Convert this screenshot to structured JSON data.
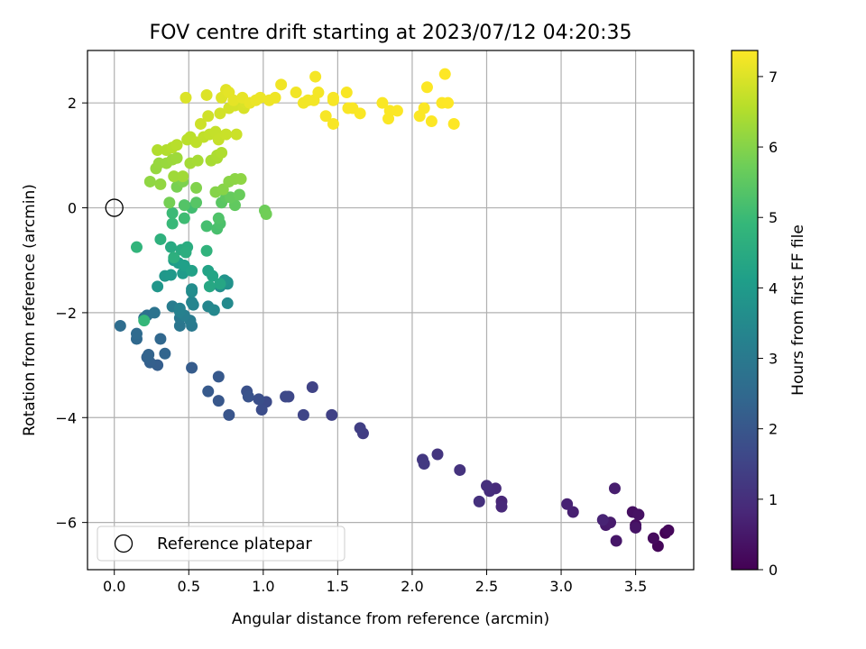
{
  "chart_data": {
    "type": "scatter",
    "title": "FOV centre drift starting at 2023/07/12 04:20:35",
    "xlabel": "Angular distance from reference (arcmin)",
    "ylabel": "Rotation from reference (arcmin)",
    "xlim": [
      -0.18,
      3.89
    ],
    "ylim": [
      -6.9,
      3.0
    ],
    "xticks": [
      0.0,
      0.5,
      1.0,
      1.5,
      2.0,
      2.5,
      3.0,
      3.5
    ],
    "xtick_labels": [
      "0.0",
      "0.5",
      "1.0",
      "1.5",
      "2.0",
      "2.5",
      "3.0",
      "3.5"
    ],
    "yticks": [
      -6,
      -4,
      -2,
      0,
      2
    ],
    "ytick_labels": [
      "−6",
      "−4",
      "−2",
      "0",
      "2"
    ],
    "grid": true,
    "colormap": "viridis",
    "colorbar": {
      "label": "Hours from first FF file",
      "range": [
        0,
        7.37
      ],
      "ticks": [
        0,
        1,
        2,
        3,
        4,
        5,
        6,
        7
      ],
      "tick_labels": [
        "0",
        "1",
        "2",
        "3",
        "4",
        "5",
        "6",
        "7"
      ]
    },
    "legend": {
      "placement": "lower-left",
      "entries": [
        {
          "label": "Reference platepar",
          "marker": "open-circle"
        }
      ]
    },
    "reference_point": {
      "x": 0.0,
      "y": 0.0
    },
    "series": [
      {
        "color_by": "hours",
        "points": [
          [
            3.7,
            -6.2,
            0.05
          ],
          [
            3.65,
            -6.45,
            0.1
          ],
          [
            3.72,
            -6.15,
            0.15
          ],
          [
            3.62,
            -6.3,
            0.2
          ],
          [
            3.5,
            -6.05,
            0.25
          ],
          [
            3.48,
            -5.8,
            0.3
          ],
          [
            3.52,
            -5.85,
            0.35
          ],
          [
            3.5,
            -6.1,
            0.4
          ],
          [
            3.37,
            -6.35,
            0.45
          ],
          [
            3.3,
            -6.05,
            0.5
          ],
          [
            3.33,
            -6.0,
            0.55
          ],
          [
            3.36,
            -5.35,
            0.6
          ],
          [
            3.08,
            -5.8,
            0.65
          ],
          [
            3.04,
            -5.65,
            0.7
          ],
          [
            3.28,
            -5.95,
            0.72
          ],
          [
            2.6,
            -5.6,
            0.8
          ],
          [
            2.6,
            -5.7,
            0.85
          ],
          [
            2.56,
            -5.35,
            0.9
          ],
          [
            2.52,
            -5.4,
            0.95
          ],
          [
            2.5,
            -5.3,
            1.0
          ],
          [
            2.45,
            -5.6,
            1.05
          ],
          [
            2.32,
            -5.0,
            1.1
          ],
          [
            2.17,
            -4.7,
            1.15
          ],
          [
            2.07,
            -4.8,
            1.2
          ],
          [
            2.08,
            -4.88,
            1.25
          ],
          [
            1.67,
            -4.3,
            1.35
          ],
          [
            1.65,
            -4.2,
            1.4
          ],
          [
            1.46,
            -3.95,
            1.45
          ],
          [
            1.33,
            -3.42,
            1.5
          ],
          [
            1.27,
            -3.95,
            1.55
          ],
          [
            1.17,
            -3.6,
            1.6
          ],
          [
            1.15,
            -3.6,
            1.65
          ],
          [
            1.02,
            -3.7,
            1.7
          ],
          [
            0.99,
            -3.85,
            1.75
          ],
          [
            0.97,
            -3.65,
            1.8
          ],
          [
            0.89,
            -3.5,
            1.85
          ],
          [
            0.9,
            -3.6,
            1.9
          ],
          [
            0.77,
            -3.95,
            1.95
          ],
          [
            0.7,
            -3.68,
            2.0
          ],
          [
            0.7,
            -3.22,
            2.05
          ],
          [
            0.63,
            -3.5,
            2.1
          ],
          [
            0.52,
            -3.05,
            2.15
          ],
          [
            0.29,
            -3.0,
            2.2
          ],
          [
            0.24,
            -2.95,
            2.25
          ],
          [
            0.22,
            -2.85,
            2.3
          ],
          [
            0.23,
            -2.8,
            2.35
          ],
          [
            0.34,
            -2.78,
            2.4
          ],
          [
            0.31,
            -2.5,
            2.45
          ],
          [
            0.15,
            -2.5,
            2.5
          ],
          [
            0.15,
            -2.4,
            2.55
          ],
          [
            0.04,
            -2.25,
            2.6
          ],
          [
            0.2,
            -2.1,
            2.7
          ],
          [
            0.22,
            -2.05,
            2.75
          ],
          [
            0.27,
            -2.0,
            2.8
          ],
          [
            0.44,
            -2.25,
            2.9
          ],
          [
            0.44,
            -2.1,
            2.95
          ],
          [
            0.52,
            -2.25,
            3.0
          ],
          [
            0.51,
            -2.15,
            3.05
          ],
          [
            0.39,
            -1.88,
            3.1
          ],
          [
            0.47,
            -2.05,
            3.15
          ],
          [
            0.44,
            -1.98,
            3.2
          ],
          [
            0.44,
            -1.92,
            3.25
          ],
          [
            0.53,
            -1.85,
            3.3
          ],
          [
            0.52,
            -1.8,
            3.35
          ],
          [
            0.63,
            -1.88,
            3.4
          ],
          [
            0.67,
            -1.95,
            3.45
          ],
          [
            0.76,
            -1.82,
            3.5
          ],
          [
            0.52,
            -1.6,
            3.55
          ],
          [
            0.52,
            -1.55,
            3.6
          ],
          [
            0.71,
            -1.5,
            3.65
          ],
          [
            0.76,
            -1.45,
            3.7
          ],
          [
            0.76,
            -1.42,
            3.75
          ],
          [
            0.74,
            -1.38,
            3.8
          ],
          [
            0.29,
            -1.5,
            3.85
          ],
          [
            0.34,
            -1.3,
            3.9
          ],
          [
            0.38,
            -1.28,
            3.95
          ],
          [
            0.46,
            -1.25,
            4.0
          ],
          [
            0.4,
            -1.0,
            4.05
          ],
          [
            0.43,
            -1.05,
            4.1
          ],
          [
            0.47,
            -1.1,
            4.15
          ],
          [
            0.52,
            -1.2,
            4.2
          ],
          [
            0.63,
            -1.2,
            4.25
          ],
          [
            0.66,
            -1.3,
            4.3
          ],
          [
            0.71,
            -1.45,
            4.35
          ],
          [
            0.64,
            -1.5,
            4.4
          ],
          [
            0.38,
            -0.75,
            4.45
          ],
          [
            0.45,
            -0.8,
            4.5
          ],
          [
            0.49,
            -0.75,
            4.55
          ],
          [
            0.48,
            -0.85,
            4.6
          ],
          [
            0.4,
            -0.95,
            4.65
          ],
          [
            0.31,
            -0.6,
            4.7
          ],
          [
            0.62,
            -0.82,
            4.75
          ],
          [
            0.15,
            -0.75,
            4.8
          ],
          [
            0.2,
            -2.15,
            4.9
          ],
          [
            0.39,
            -0.3,
            4.95
          ],
          [
            0.39,
            -0.1,
            5.0
          ],
          [
            0.47,
            -0.2,
            5.05
          ],
          [
            0.52,
            0.0,
            5.1
          ],
          [
            0.62,
            -0.35,
            5.15
          ],
          [
            0.69,
            -0.4,
            5.2
          ],
          [
            0.71,
            -0.3,
            5.25
          ],
          [
            0.7,
            -0.2,
            5.3
          ],
          [
            0.47,
            0.05,
            5.35
          ],
          [
            0.55,
            0.1,
            5.4
          ],
          [
            0.72,
            0.1,
            5.45
          ],
          [
            0.75,
            0.2,
            5.5
          ],
          [
            0.81,
            0.05,
            5.55
          ],
          [
            0.78,
            0.2,
            5.6
          ],
          [
            0.84,
            0.25,
            5.65
          ],
          [
            1.01,
            -0.05,
            5.7
          ],
          [
            1.02,
            -0.12,
            5.75
          ],
          [
            0.37,
            0.1,
            5.8
          ],
          [
            0.42,
            0.4,
            5.85
          ],
          [
            0.46,
            0.5,
            5.9
          ],
          [
            0.55,
            0.38,
            5.95
          ],
          [
            0.68,
            0.3,
            6.0
          ],
          [
            0.73,
            0.35,
            6.02
          ],
          [
            0.77,
            0.5,
            6.05
          ],
          [
            0.81,
            0.55,
            6.08
          ],
          [
            0.85,
            0.55,
            6.1
          ],
          [
            0.24,
            0.5,
            6.12
          ],
          [
            0.31,
            0.45,
            6.15
          ],
          [
            0.28,
            0.75,
            6.18
          ],
          [
            0.3,
            0.85,
            6.2
          ],
          [
            0.35,
            0.85,
            6.22
          ],
          [
            0.39,
            0.92,
            6.25
          ],
          [
            0.42,
            0.95,
            6.28
          ],
          [
            0.4,
            0.6,
            6.3
          ],
          [
            0.46,
            0.6,
            6.32
          ],
          [
            0.51,
            0.85,
            6.35
          ],
          [
            0.56,
            0.9,
            6.38
          ],
          [
            0.65,
            0.9,
            6.4
          ],
          [
            0.69,
            0.95,
            6.42
          ],
          [
            0.69,
            1.0,
            6.45
          ],
          [
            0.72,
            1.05,
            6.48
          ],
          [
            0.29,
            1.1,
            6.5
          ],
          [
            0.35,
            1.1,
            6.52
          ],
          [
            0.39,
            1.15,
            6.55
          ],
          [
            0.42,
            1.2,
            6.58
          ],
          [
            0.49,
            1.3,
            6.6
          ],
          [
            0.51,
            1.35,
            6.62
          ],
          [
            0.55,
            1.25,
            6.65
          ],
          [
            0.6,
            1.35,
            6.68
          ],
          [
            0.64,
            1.4,
            6.7
          ],
          [
            0.68,
            1.45,
            6.72
          ],
          [
            0.7,
            1.3,
            6.75
          ],
          [
            0.75,
            1.4,
            6.78
          ],
          [
            0.82,
            1.4,
            6.8
          ],
          [
            0.58,
            1.6,
            6.82
          ],
          [
            0.63,
            1.75,
            6.85
          ],
          [
            0.71,
            1.8,
            6.88
          ],
          [
            0.77,
            1.9,
            6.9
          ],
          [
            0.81,
            1.95,
            6.92
          ],
          [
            0.87,
            1.9,
            6.95
          ],
          [
            0.88,
            2.0,
            6.97
          ],
          [
            0.48,
            2.1,
            6.98
          ],
          [
            0.62,
            2.15,
            7.0
          ],
          [
            0.72,
            2.1,
            7.02
          ],
          [
            0.75,
            2.25,
            7.05
          ],
          [
            0.77,
            2.2,
            7.08
          ],
          [
            0.8,
            2.05,
            7.1
          ],
          [
            0.86,
            2.1,
            7.12
          ],
          [
            0.91,
            2.0,
            7.14
          ],
          [
            0.95,
            2.05,
            7.16
          ],
          [
            0.98,
            2.1,
            7.18
          ],
          [
            1.04,
            2.05,
            7.2
          ],
          [
            1.08,
            2.1,
            7.21
          ],
          [
            1.12,
            2.35,
            7.22
          ],
          [
            1.22,
            2.2,
            7.23
          ],
          [
            1.27,
            2.0,
            7.24
          ],
          [
            1.3,
            2.05,
            7.25
          ],
          [
            1.34,
            2.05,
            7.26
          ],
          [
            1.37,
            2.2,
            7.27
          ],
          [
            1.35,
            2.5,
            7.28
          ],
          [
            1.47,
            2.05,
            7.29
          ],
          [
            1.47,
            2.1,
            7.3
          ],
          [
            1.42,
            1.75,
            7.3
          ],
          [
            1.47,
            1.6,
            7.31
          ],
          [
            1.56,
            2.2,
            7.31
          ],
          [
            1.57,
            1.9,
            7.32
          ],
          [
            1.6,
            1.9,
            7.32
          ],
          [
            1.65,
            1.8,
            7.33
          ],
          [
            1.8,
            2.0,
            7.33
          ],
          [
            1.85,
            1.85,
            7.34
          ],
          [
            1.84,
            1.7,
            7.34
          ],
          [
            1.9,
            1.85,
            7.35
          ],
          [
            2.05,
            1.75,
            7.35
          ],
          [
            2.08,
            1.9,
            7.35
          ],
          [
            2.1,
            2.3,
            7.36
          ],
          [
            2.13,
            1.65,
            7.36
          ],
          [
            2.2,
            2.0,
            7.36
          ],
          [
            2.22,
            2.55,
            7.37
          ],
          [
            2.24,
            2.0,
            7.37
          ],
          [
            2.28,
            1.6,
            7.37
          ]
        ]
      }
    ]
  }
}
